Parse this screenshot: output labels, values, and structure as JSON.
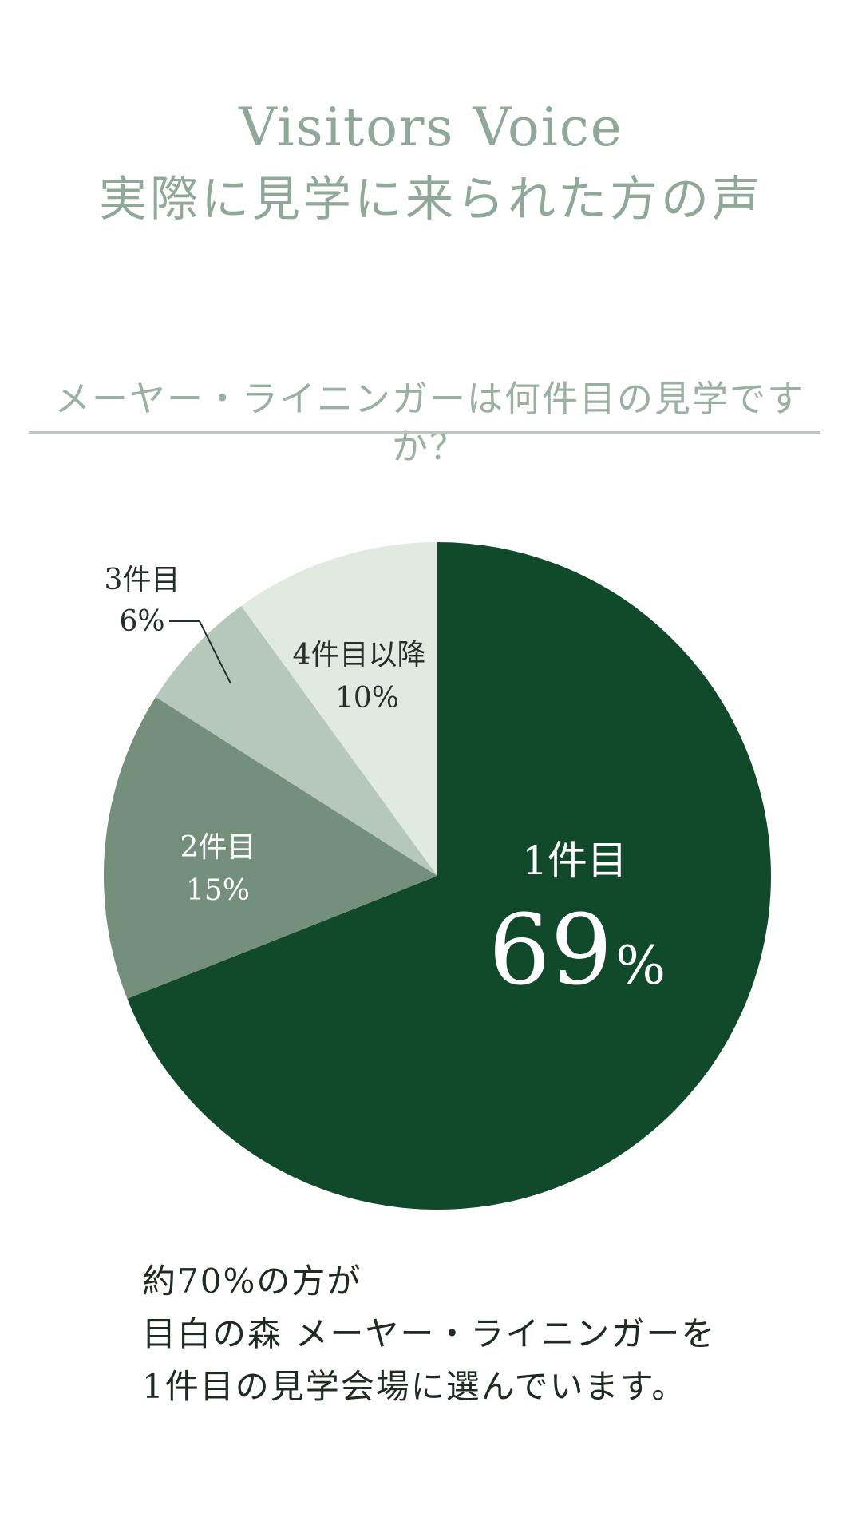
{
  "header": {
    "title_en": "Visitors Voice",
    "title_ja": "実際に見学に来られた方の声"
  },
  "question": "メーヤー・ライニンガーは何件目の見学ですか？",
  "chart_data": {
    "type": "pie",
    "title": "メーヤー・ライニンガーは何件目の見学ですか？",
    "start": "12 o'clock",
    "direction": "clockwise",
    "slices": [
      {
        "label": "1件目",
        "value": 69,
        "value_text": "69",
        "unit": "%",
        "color": "#104a2a"
      },
      {
        "label": "2件目",
        "value": 15,
        "value_text": "15%",
        "color": "#748f7c"
      },
      {
        "label": "3件目",
        "value": 6,
        "value_text": "6%",
        "color": "#b6c8bc"
      },
      {
        "label": "4件目以降",
        "value": 10,
        "value_text": "10%",
        "color": "#e1eae1"
      }
    ]
  },
  "caption": {
    "lines": [
      "約70%の方が",
      "目白の森 メーヤー・ライニンガーを",
      "1件目の見学会場に選んでいます。"
    ]
  }
}
